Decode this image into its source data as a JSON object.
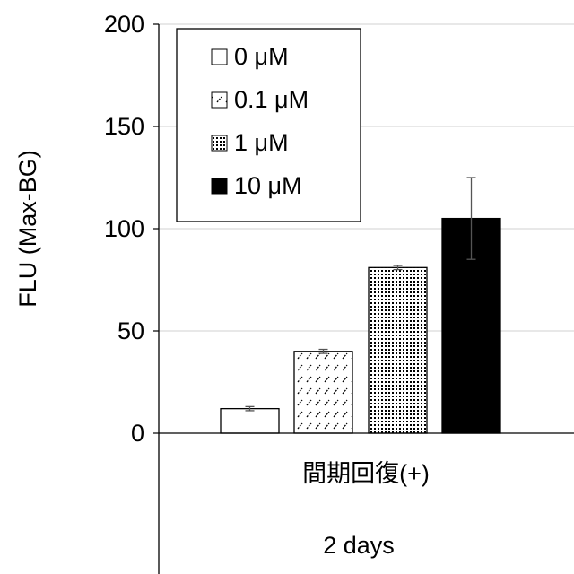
{
  "chart_data": {
    "type": "bar",
    "title": "",
    "ylabel": "FLU (Max-BG)",
    "xlabel": "",
    "ylim": [
      0,
      200
    ],
    "yticks": [
      0,
      50,
      100,
      150,
      200
    ],
    "ytick_labels": [
      "0",
      "50",
      "100",
      "150",
      "200"
    ],
    "grid": true,
    "categories": [
      "間期回復(+)"
    ],
    "category_group": "2 days",
    "series": [
      {
        "name": "0 μM",
        "values": [
          12
        ],
        "error": [
          1
        ],
        "fill": "white"
      },
      {
        "name": "0.1 μM",
        "values": [
          40
        ],
        "error": [
          1
        ],
        "fill": "dashed-hatch"
      },
      {
        "name": "1 μM",
        "values": [
          81
        ],
        "error": [
          1
        ],
        "fill": "dotted"
      },
      {
        "name": "10 μM",
        "values": [
          105
        ],
        "error": [
          20
        ],
        "fill": "black"
      }
    ],
    "legend": {
      "placement": "top-left"
    },
    "colors": {
      "axis": "#000000",
      "grid": "#d9d9d9",
      "error_bar": "#555555"
    }
  }
}
